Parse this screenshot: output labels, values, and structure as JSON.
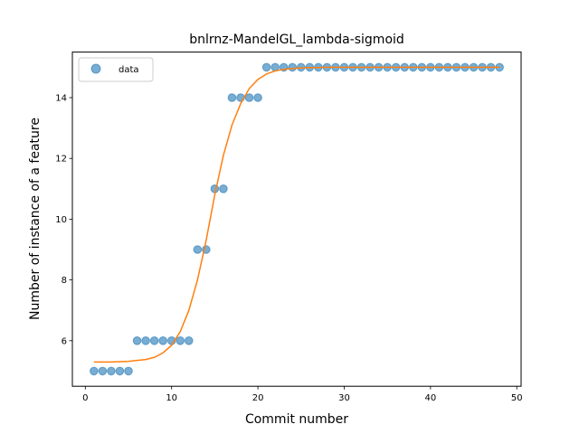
{
  "chart_data": {
    "type": "scatter",
    "title": "bnlrnz-MandelGL_lambda-sigmoid",
    "xlabel": "Commit number",
    "ylabel": "Number of instance of a feature",
    "xlim": [
      -1.5,
      50.5
    ],
    "ylim": [
      4.5,
      15.5
    ],
    "xticks": [
      0,
      10,
      20,
      30,
      40,
      50
    ],
    "yticks": [
      6,
      8,
      10,
      12,
      14
    ],
    "grid": false,
    "legend_position": "upper-left",
    "series": [
      {
        "name": "data",
        "kind": "scatter",
        "color": "#1f77b4",
        "x": [
          1,
          2,
          3,
          4,
          5,
          6,
          7,
          8,
          9,
          10,
          11,
          12,
          13,
          14,
          15,
          16,
          17,
          18,
          19,
          20,
          21,
          22,
          23,
          24,
          25,
          26,
          27,
          28,
          29,
          30,
          31,
          32,
          33,
          34,
          35,
          36,
          37,
          38,
          39,
          40,
          41,
          42,
          43,
          44,
          45,
          46,
          47,
          48
        ],
        "y": [
          5,
          5,
          5,
          5,
          5,
          6,
          6,
          6,
          6,
          6,
          6,
          6,
          9,
          9,
          11,
          11,
          14,
          14,
          14,
          14,
          15,
          15,
          15,
          15,
          15,
          15,
          15,
          15,
          15,
          15,
          15,
          15,
          15,
          15,
          15,
          15,
          15,
          15,
          15,
          15,
          15,
          15,
          15,
          15,
          15,
          15,
          15,
          15
        ]
      },
      {
        "kind": "line",
        "color": "#ff7f0e",
        "x": [
          1,
          2,
          3,
          4,
          5,
          6,
          7,
          8,
          9,
          10,
          11,
          12,
          13,
          14,
          15,
          16,
          17,
          18,
          19,
          20,
          21,
          22,
          23,
          24,
          25,
          26,
          27,
          28,
          29,
          30,
          31,
          32,
          33,
          34,
          35,
          36,
          37,
          38,
          39,
          40,
          41,
          42,
          43,
          44,
          45,
          46,
          47,
          48
        ],
        "y": [
          5.3,
          5.3,
          5.3,
          5.31,
          5.32,
          5.35,
          5.38,
          5.45,
          5.6,
          5.85,
          6.3,
          7.0,
          8.0,
          9.3,
          10.8,
          12.1,
          13.1,
          13.8,
          14.3,
          14.6,
          14.78,
          14.88,
          14.93,
          14.96,
          14.98,
          14.99,
          14.99,
          15.0,
          15.0,
          15.0,
          15.0,
          15.0,
          15.0,
          15.0,
          15.0,
          15.0,
          15.0,
          15.0,
          15.0,
          15.0,
          15.0,
          15.0,
          15.0,
          15.0,
          15.0,
          15.0,
          15.0,
          15.0
        ]
      }
    ]
  }
}
